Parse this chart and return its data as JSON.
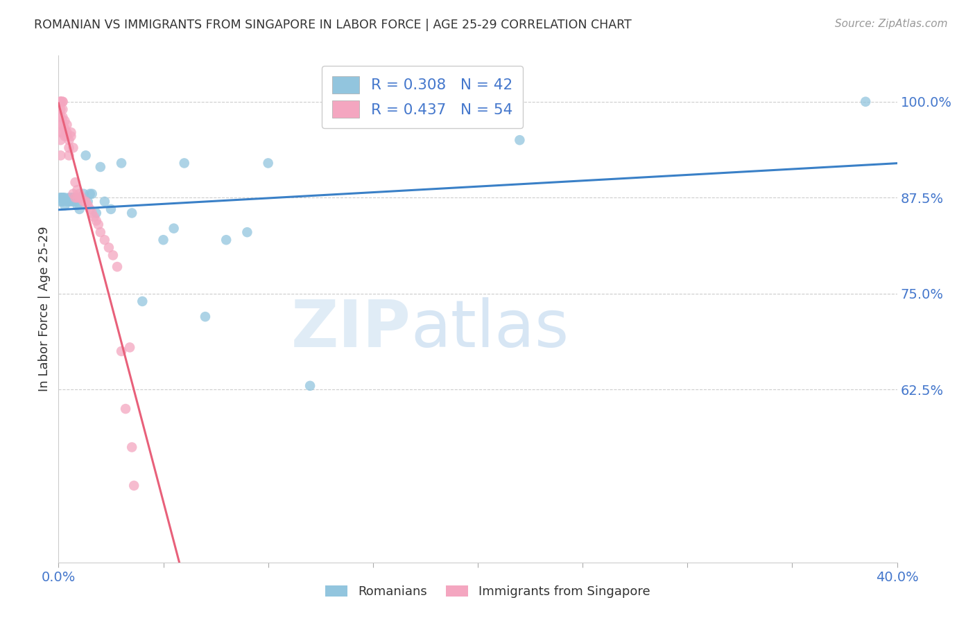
{
  "title": "ROMANIAN VS IMMIGRANTS FROM SINGAPORE IN LABOR FORCE | AGE 25-29 CORRELATION CHART",
  "source": "Source: ZipAtlas.com",
  "ylabel": "In Labor Force | Age 25-29",
  "xlim": [
    0.0,
    0.4
  ],
  "ylim": [
    0.4,
    1.06
  ],
  "yticks": [
    0.625,
    0.75,
    0.875,
    1.0
  ],
  "ytick_labels": [
    "62.5%",
    "75.0%",
    "87.5%",
    "100.0%"
  ],
  "xticks": [
    0.0,
    0.05,
    0.1,
    0.15,
    0.2,
    0.25,
    0.3,
    0.35,
    0.4
  ],
  "xtick_labels": [
    "0.0%",
    "",
    "",
    "",
    "",
    "",
    "",
    "",
    "40.0%"
  ],
  "blue_color": "#92c5de",
  "pink_color": "#f4a6c0",
  "blue_line_color": "#3a80c7",
  "pink_line_color": "#e8607a",
  "grid_color": "#cccccc",
  "legend_blue_R": "R = 0.308",
  "legend_blue_N": "N = 42",
  "legend_pink_R": "R = 0.437",
  "legend_pink_N": "N = 54",
  "title_color": "#333333",
  "axis_color": "#4477cc",
  "watermark_zip": "ZIP",
  "watermark_atlas": "atlas",
  "blue_scatter_x": [
    0.001,
    0.001,
    0.001,
    0.002,
    0.002,
    0.002,
    0.003,
    0.003,
    0.004,
    0.005,
    0.005,
    0.006,
    0.006,
    0.007,
    0.007,
    0.008,
    0.009,
    0.01,
    0.01,
    0.011,
    0.012,
    0.013,
    0.014,
    0.015,
    0.016,
    0.018,
    0.02,
    0.022,
    0.025,
    0.03,
    0.035,
    0.04,
    0.05,
    0.055,
    0.06,
    0.07,
    0.08,
    0.09,
    0.1,
    0.12,
    0.22,
    0.385
  ],
  "blue_scatter_y": [
    0.875,
    0.875,
    0.87,
    0.875,
    0.875,
    0.87,
    0.875,
    0.865,
    0.87,
    0.875,
    0.87,
    0.875,
    0.87,
    0.875,
    0.87,
    0.87,
    0.865,
    0.875,
    0.86,
    0.875,
    0.88,
    0.93,
    0.87,
    0.88,
    0.88,
    0.855,
    0.915,
    0.87,
    0.86,
    0.92,
    0.855,
    0.74,
    0.82,
    0.835,
    0.92,
    0.72,
    0.82,
    0.83,
    0.92,
    0.63,
    0.95,
    1.0
  ],
  "pink_scatter_x": [
    0.001,
    0.001,
    0.001,
    0.001,
    0.001,
    0.001,
    0.001,
    0.001,
    0.001,
    0.001,
    0.002,
    0.002,
    0.002,
    0.002,
    0.002,
    0.002,
    0.003,
    0.003,
    0.003,
    0.004,
    0.004,
    0.004,
    0.005,
    0.005,
    0.005,
    0.006,
    0.006,
    0.007,
    0.007,
    0.008,
    0.008,
    0.009,
    0.009,
    0.01,
    0.01,
    0.011,
    0.012,
    0.013,
    0.014,
    0.015,
    0.016,
    0.017,
    0.018,
    0.019,
    0.02,
    0.022,
    0.024,
    0.026,
    0.028,
    0.03,
    0.032,
    0.034,
    0.035,
    0.036
  ],
  "pink_scatter_y": [
    1.0,
    1.0,
    1.0,
    1.0,
    0.99,
    0.98,
    0.97,
    0.96,
    0.95,
    0.93,
    1.0,
    1.0,
    0.99,
    0.98,
    0.97,
    0.96,
    0.975,
    0.965,
    0.955,
    0.97,
    0.96,
    0.955,
    0.95,
    0.94,
    0.93,
    0.96,
    0.955,
    0.94,
    0.88,
    0.895,
    0.875,
    0.885,
    0.875,
    0.88,
    0.875,
    0.875,
    0.87,
    0.87,
    0.865,
    0.86,
    0.855,
    0.85,
    0.845,
    0.84,
    0.83,
    0.82,
    0.81,
    0.8,
    0.785,
    0.675,
    0.6,
    0.68,
    0.55,
    0.5
  ],
  "pink_line_x_end": 0.062
}
